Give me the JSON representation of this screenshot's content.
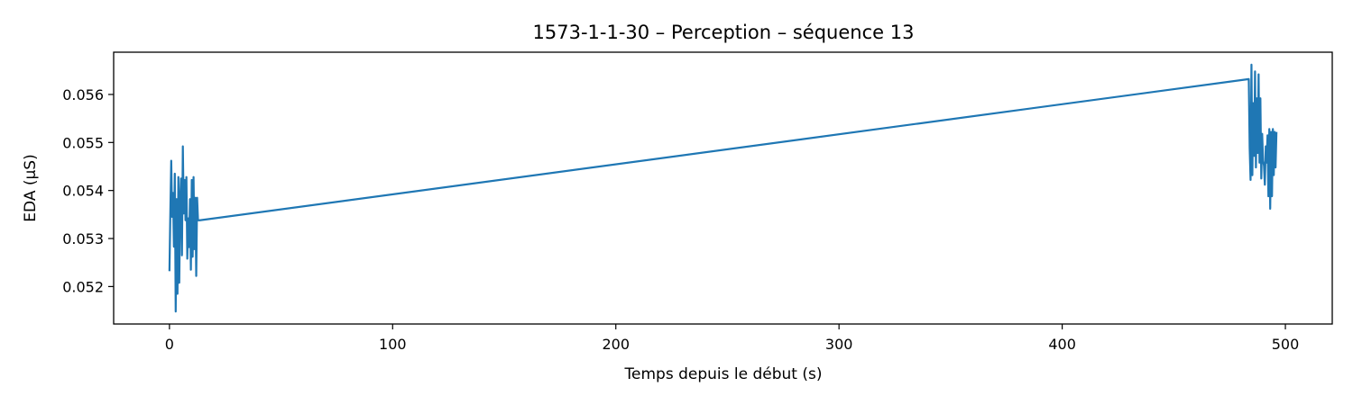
{
  "chart_data": {
    "type": "line",
    "title": "1573-1-1-30 – Perception – séquence 13",
    "xlabel": "Temps depuis le début (s)",
    "ylabel": "EDA (µS)",
    "xlim": [
      -25,
      521
    ],
    "ylim": [
      0.05122,
      0.05688
    ],
    "xticks": [
      0,
      100,
      200,
      300,
      400,
      500
    ],
    "yticks": [
      0.052,
      0.053,
      0.054,
      0.055,
      0.056
    ],
    "xtick_labels": [
      "0",
      "100",
      "200",
      "300",
      "400",
      "500"
    ],
    "ytick_labels": [
      "0.052",
      "0.053",
      "0.054",
      "0.055",
      "0.056"
    ],
    "grid": false,
    "legend": false,
    "series": [
      {
        "color": "#1f77b4",
        "x": [
          0.0,
          0.4,
          0.8,
          1.2,
          1.6,
          2.0,
          2.4,
          2.8,
          3.2,
          3.6,
          4.0,
          4.4,
          4.8,
          5.2,
          5.6,
          6.0,
          6.4,
          6.8,
          7.2,
          7.6,
          8.0,
          8.4,
          8.8,
          9.2,
          9.6,
          10.0,
          10.4,
          10.8,
          11.2,
          11.6,
          12.0,
          12.4,
          12.8,
          13.2,
          13.6,
          483.6,
          484.0,
          484.4,
          484.8,
          485.2,
          485.6,
          486.0,
          486.4,
          486.8,
          487.2,
          487.6,
          488.0,
          488.4,
          488.8,
          489.2,
          489.6,
          490.0,
          490.4,
          490.8,
          491.2,
          491.6,
          492.0,
          492.4,
          492.8,
          493.2,
          493.6,
          494.0,
          494.4,
          494.8,
          495.2,
          495.6,
          496.0
        ],
        "y": [
          0.05232,
          0.05355,
          0.05462,
          0.05345,
          0.05395,
          0.05283,
          0.05435,
          0.05148,
          0.05382,
          0.05185,
          0.05428,
          0.05208,
          0.05382,
          0.05425,
          0.05265,
          0.05492,
          0.05352,
          0.05422,
          0.05338,
          0.05428,
          0.05258,
          0.05342,
          0.05282,
          0.05382,
          0.05235,
          0.05422,
          0.05262,
          0.05428,
          0.05278,
          0.05385,
          0.05222,
          0.05385,
          0.05338,
          0.05338,
          0.05338,
          0.05632,
          0.05488,
          0.05422,
          0.05662,
          0.05432,
          0.05582,
          0.05472,
          0.05648,
          0.05448,
          0.05592,
          0.05478,
          0.05642,
          0.05458,
          0.05592,
          0.05425,
          0.05518,
          0.05462,
          0.05452,
          0.05412,
          0.05492,
          0.05458,
          0.05515,
          0.05388,
          0.05528,
          0.05362,
          0.05522,
          0.05388,
          0.05528,
          0.05432,
          0.05522,
          0.05448,
          0.05522
        ]
      }
    ]
  }
}
